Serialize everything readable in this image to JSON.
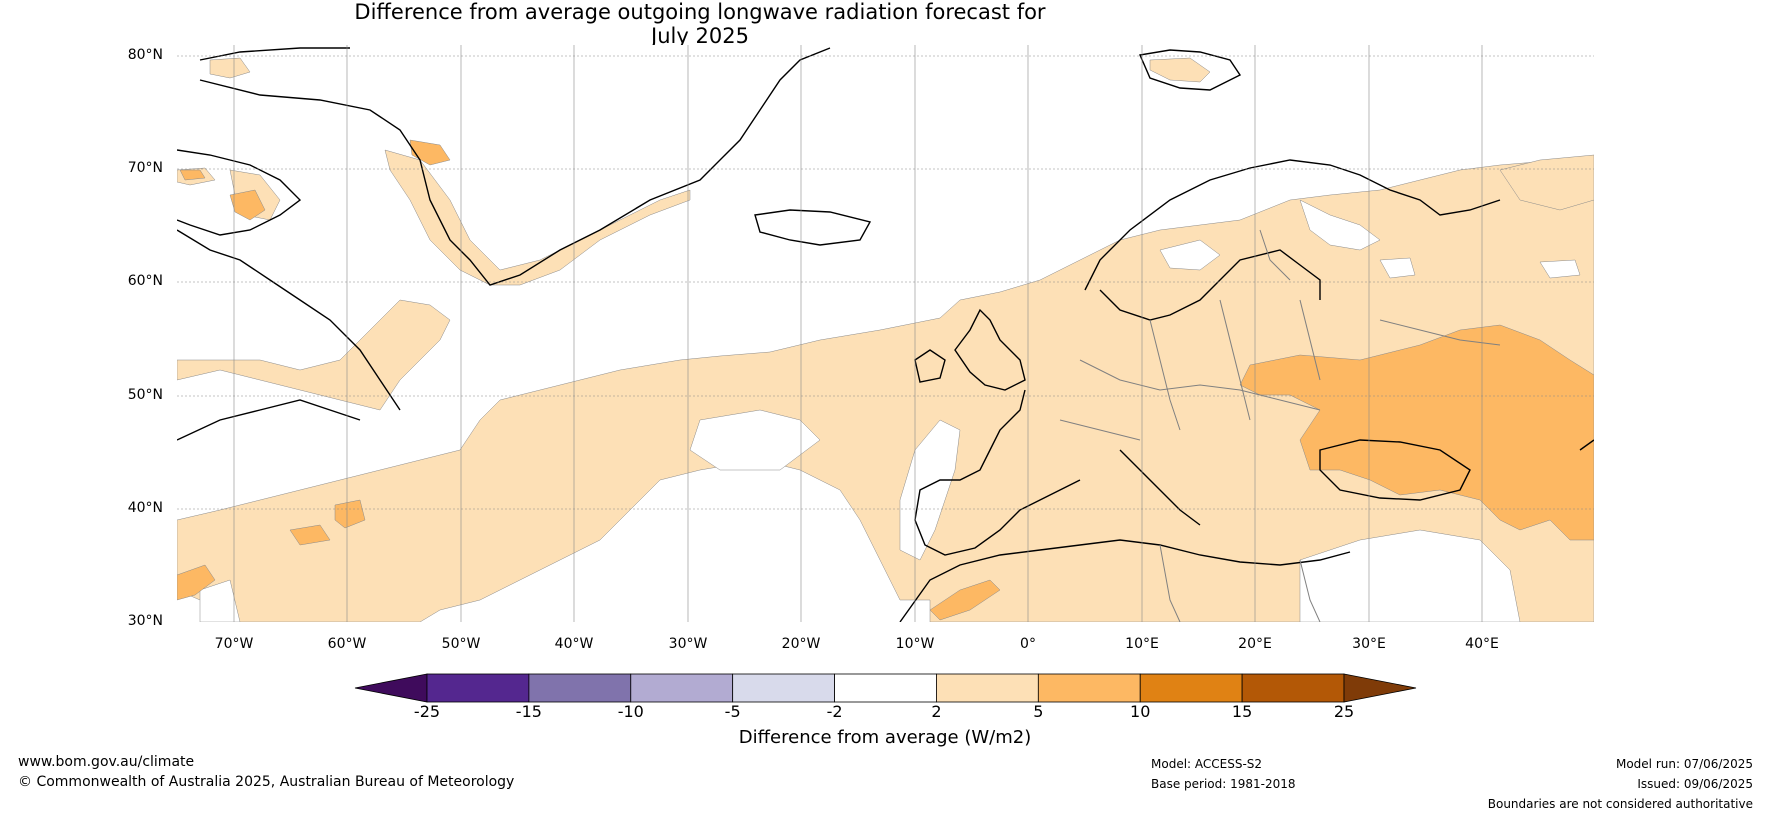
{
  "title_line1": "Difference from average outgoing longwave radiation forecast for",
  "title_line2": "July 2025",
  "lat_labels": [
    "80°N",
    "70°N",
    "60°N",
    "50°N",
    "40°N",
    "30°N"
  ],
  "lon_labels": [
    "70°W",
    "60°W",
    "50°W",
    "40°W",
    "30°W",
    "20°W",
    "10°W",
    "0°",
    "10°E",
    "20°E",
    "30°E",
    "40°E"
  ],
  "colorbar": {
    "label": "Difference from average (W/m2)",
    "ticks": [
      "-25",
      "-15",
      "-10",
      "-5",
      "-2",
      "2",
      "5",
      "10",
      "15",
      "25"
    ],
    "colors": [
      "#3f0b5c",
      "#54278f",
      "#8073ac",
      "#b2abd2",
      "#d8daeb",
      "#ffffff",
      "#fde0b6",
      "#fdb863",
      "#e08214",
      "#b35806",
      "#7f3b08"
    ]
  },
  "footer": {
    "website": "www.bom.gov.au/climate",
    "copyright": "© Commonwealth of Australia 2025, Australian Bureau of Meteorology",
    "model": "Model: ACCESS-S2",
    "base_period": "Base period: 1981-2018",
    "model_run": "Model run: 07/06/2025",
    "issued": "Issued: 09/06/2025",
    "disclaimer": "Boundaries are not considered authoritative"
  },
  "colors": {
    "light_orange": "#fde0b6",
    "mid_orange": "#fdb863",
    "coast": "#000000",
    "border": "#808080"
  }
}
